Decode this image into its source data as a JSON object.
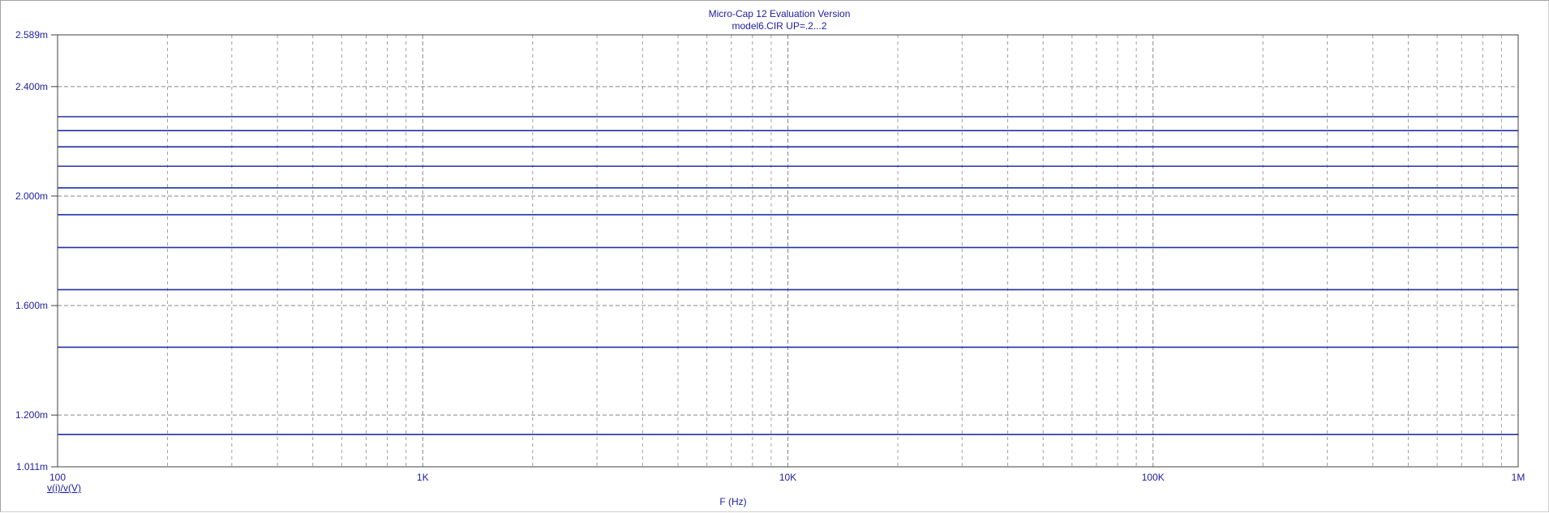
{
  "chart_data": {
    "type": "line",
    "title": "Micro-Cap 12 Evaluation Version",
    "subtitle": "model6.CIR UP=.2...2",
    "xlabel": "F (Hz)",
    "ylabel": "v(i)/v(V)",
    "x_scale": "log",
    "xlim": [
      100,
      1000000
    ],
    "ylim": [
      0.001011,
      0.002589
    ],
    "x_ticks": [
      {
        "value": 100,
        "label": "100"
      },
      {
        "value": 1000,
        "label": "1K"
      },
      {
        "value": 10000,
        "label": "10K"
      },
      {
        "value": 100000,
        "label": "100K"
      },
      {
        "value": 1000000,
        "label": "1M"
      }
    ],
    "y_ticks": [
      {
        "value": 0.001011,
        "label": "1.011m"
      },
      {
        "value": 0.0012,
        "label": "1.200m"
      },
      {
        "value": 0.0016,
        "label": "1.600m"
      },
      {
        "value": 0.002,
        "label": "2.000m"
      },
      {
        "value": 0.0024,
        "label": "2.400m"
      },
      {
        "value": 0.002589,
        "label": "2.589m"
      }
    ],
    "grid": true,
    "line_color": "#2030a8",
    "grid_color": "#808080",
    "axis_color": "#2020a0",
    "series": [
      {
        "x": [
          100,
          1000000
        ],
        "y": [
          0.001129,
          0.001129
        ]
      },
      {
        "x": [
          100,
          1000000
        ],
        "y": [
          0.001448,
          0.001448
        ]
      },
      {
        "x": [
          100,
          1000000
        ],
        "y": [
          0.001658,
          0.001658
        ]
      },
      {
        "x": [
          100,
          1000000
        ],
        "y": [
          0.001812,
          0.001812
        ]
      },
      {
        "x": [
          100,
          1000000
        ],
        "y": [
          0.001932,
          0.001932
        ]
      },
      {
        "x": [
          100,
          1000000
        ],
        "y": [
          0.00203,
          0.00203
        ]
      },
      {
        "x": [
          100,
          1000000
        ],
        "y": [
          0.002109,
          0.002109
        ]
      },
      {
        "x": [
          100,
          1000000
        ],
        "y": [
          0.00218,
          0.00218
        ]
      },
      {
        "x": [
          100,
          1000000
        ],
        "y": [
          0.002239,
          0.002239
        ]
      },
      {
        "x": [
          100,
          1000000
        ],
        "y": [
          0.00229,
          0.00229
        ]
      }
    ]
  }
}
